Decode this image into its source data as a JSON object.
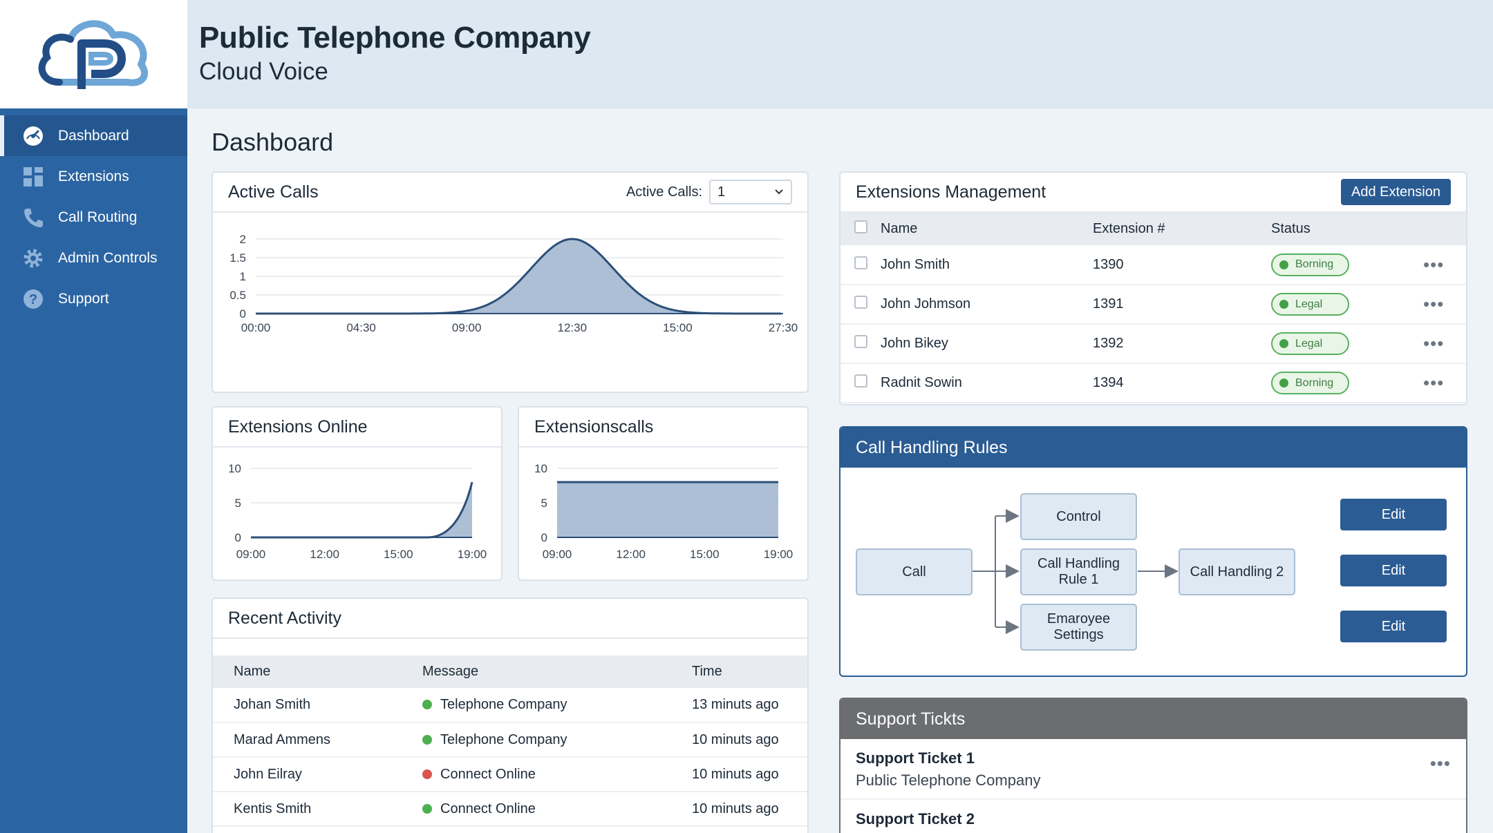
{
  "brand": {
    "company": "Public Telephone Company",
    "product": "Cloud Voice",
    "accent": "#2b64a2"
  },
  "sidebar": {
    "items": [
      {
        "label": "Dashboard",
        "icon": "dashboard-gauge-icon",
        "active": true
      },
      {
        "label": "Extensions",
        "icon": "grid-icon"
      },
      {
        "label": "Call Routing",
        "icon": "phone-icon"
      },
      {
        "label": "Admin Controls",
        "icon": "gear-icon"
      },
      {
        "label": "Support",
        "icon": "help-circle-icon"
      }
    ]
  },
  "page": {
    "title": "Dashboard"
  },
  "active_calls": {
    "title": "Active Calls",
    "filter_label": "Active Calls:",
    "filter_value": "1"
  },
  "extensions_online": {
    "title": "Extensions Online"
  },
  "extensions_calls": {
    "title": "Extensionscalls"
  },
  "chart_data": [
    {
      "type": "area",
      "title": "Active Calls",
      "x": [
        "00:00",
        "04:30",
        "09:00",
        "12:30",
        "15:00",
        "27:30"
      ],
      "series": [
        {
          "values": [
            0,
            0,
            0,
            2,
            0,
            0
          ]
        }
      ],
      "ylim": [
        0,
        2
      ],
      "yticks": [
        "0",
        "0.5",
        "1",
        "1.5",
        "2"
      ],
      "grid": true
    },
    {
      "type": "area",
      "title": "Extensions Online",
      "x": [
        "09:00",
        "12:00",
        "15:00",
        "19:00"
      ],
      "series": [
        {
          "values": [
            0,
            0,
            0,
            8
          ]
        }
      ],
      "ylim": [
        0,
        10
      ],
      "yticks": [
        "0",
        "5",
        "10"
      ],
      "grid": true
    },
    {
      "type": "area",
      "title": "Extensionscalls",
      "x": [
        "09:00",
        "12:00",
        "15:00",
        "19:00"
      ],
      "series": [
        {
          "values": [
            8,
            8,
            8,
            8
          ]
        }
      ],
      "ylim": [
        0,
        10
      ],
      "yticks": [
        "0",
        "5",
        "10"
      ],
      "grid": true
    }
  ],
  "recent_activity": {
    "title": "Recent Activity",
    "columns": [
      "Name",
      "Message",
      "Time"
    ],
    "rows": [
      {
        "name": "Johan Smith",
        "message": "Telephone Company",
        "time": "13 minuts ago",
        "status_color": "#4caf50"
      },
      {
        "name": "Marad Ammens",
        "message": "Telephone Company",
        "time": "10 minuts ago",
        "status_color": "#4caf50"
      },
      {
        "name": "John Eilray",
        "message": "Connect Online",
        "time": "10 minuts ago",
        "status_color": "#d9534f"
      },
      {
        "name": "Kentis Smith",
        "message": "Connect Online",
        "time": "10 minuts ago",
        "status_color": "#4caf50"
      }
    ]
  },
  "extensions_mgmt": {
    "title": "Extensions Management",
    "add_label": "Add Extension",
    "columns": [
      "Name",
      "Extension #",
      "Status"
    ],
    "rows": [
      {
        "name": "John Smith",
        "ext": "1390",
        "status": "Borning"
      },
      {
        "name": "John Johmson",
        "ext": "1391",
        "status": "Legal"
      },
      {
        "name": "John Bikey",
        "ext": "1392",
        "status": "Legal"
      },
      {
        "name": "Radnit Sowin",
        "ext": "1394",
        "status": "Borning"
      }
    ]
  },
  "call_rules": {
    "title": "Call Handling Rules",
    "nodes": {
      "call": "Call",
      "control": "Control",
      "rule1": "Call Handling Rule 1",
      "employee": "Emaroyee Settings",
      "handling2": "Call Handling 2"
    },
    "edit_label": "Edit"
  },
  "support": {
    "title": "Support Tickts",
    "tickets": [
      {
        "title": "Support Ticket 1",
        "subtitle": "Public Telephone Company"
      },
      {
        "title": "Support Ticket 2",
        "subtitle": ""
      }
    ]
  }
}
